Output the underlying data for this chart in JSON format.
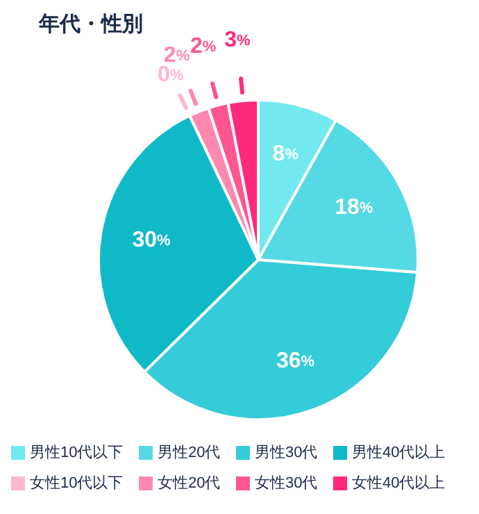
{
  "chart_data": {
    "type": "pie",
    "title": "年代・性別",
    "categories": [
      "男性10代以下",
      "男性20代",
      "男性30代",
      "男性40代以上",
      "女性10代以下",
      "女性20代",
      "女性30代",
      "女性40代以上"
    ],
    "values": [
      8,
      18,
      36,
      30,
      0,
      2,
      2,
      3
    ],
    "colors": [
      "#72e8f0",
      "#55d9e4",
      "#33ccd8",
      "#0fb9c8",
      "#ffb8cc",
      "#ff88b0",
      "#ff5590",
      "#ff2a7c"
    ],
    "value_labels": [
      "8%",
      "18%",
      "36%",
      "30%",
      "0%",
      "2%",
      "2%",
      "3%"
    ],
    "legend": "bottom"
  }
}
